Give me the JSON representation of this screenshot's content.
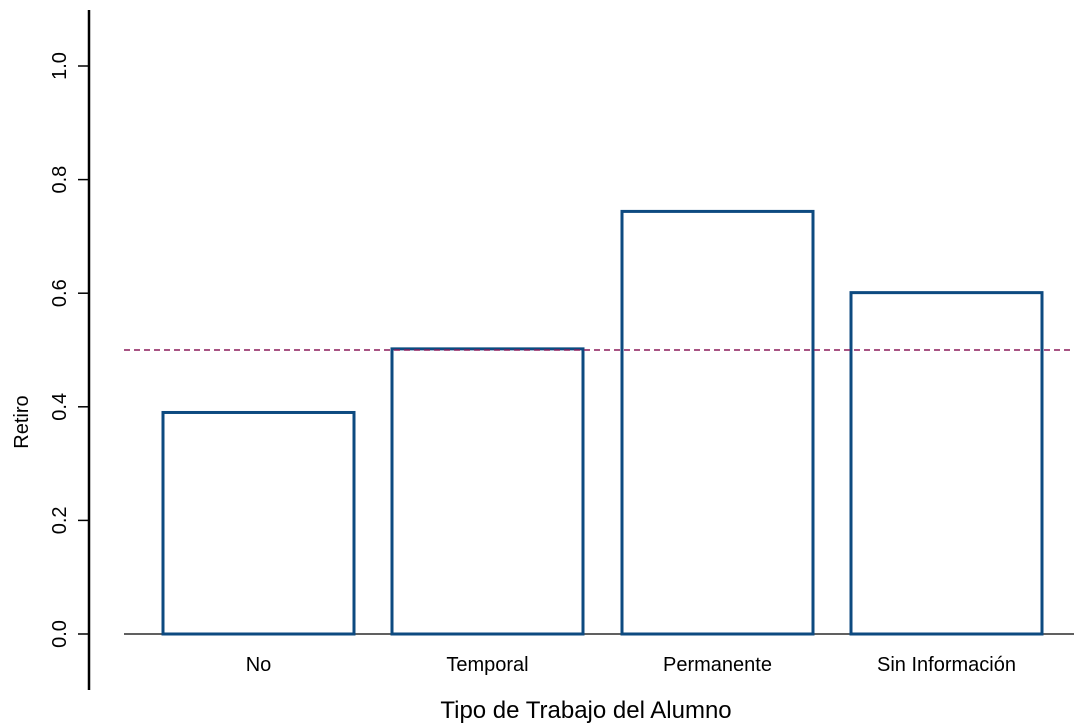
{
  "chart_data": {
    "type": "bar",
    "categories": [
      "No",
      "Temporal",
      "Permanente",
      "Sin Información"
    ],
    "values": [
      0.39,
      0.502,
      0.744,
      0.601
    ],
    "xlabel": "Tipo de Trabajo del Alumno",
    "ylabel": "Retiro",
    "ylim": [
      0,
      1.0
    ],
    "yticks": [
      0.0,
      0.2,
      0.4,
      0.6,
      0.8,
      1.0
    ],
    "ytick_labels": [
      "0.0",
      "0.2",
      "0.4",
      "0.6",
      "0.8",
      "1.0"
    ],
    "reference_line": 0.5,
    "grid": false,
    "colors": {
      "bar_stroke": "#0d4a80",
      "bar_fill": "#ffffff",
      "reference_line": "#8b1a5a",
      "axis": "#000000"
    }
  }
}
